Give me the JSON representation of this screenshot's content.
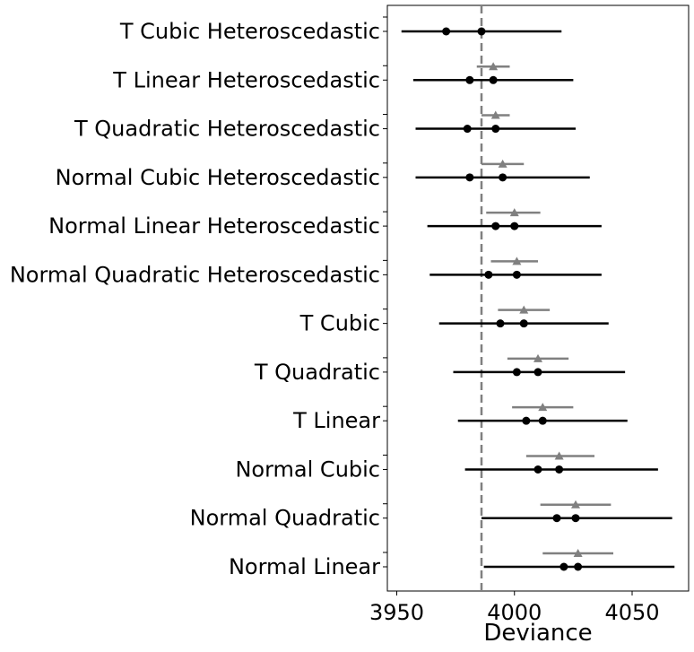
{
  "chart_data": {
    "type": "forest",
    "xlabel": "Deviance",
    "xlim": [
      3946,
      4074
    ],
    "xticks": [
      3950,
      4000,
      4050
    ],
    "reference_line": {
      "x": 3986,
      "style": "dashed",
      "color": "#808080"
    },
    "colors": {
      "primary": "#000000",
      "secondary": "#808080"
    },
    "categories": [
      "T Cubic Heteroscedastic",
      "T Linear Heteroscedastic",
      "T Quadratic Heteroscedastic",
      "Normal Cubic Heteroscedastic",
      "Normal Linear Heteroscedastic",
      "Normal Quadratic Heteroscedastic",
      "T Cubic",
      "T Quadratic",
      "T Linear",
      "Normal Cubic",
      "Normal Quadratic",
      "Normal Linear"
    ],
    "rows": [
      {
        "label": "T Cubic Heteroscedastic",
        "point": 3971,
        "ci": [
          3952,
          4020
        ],
        "mean": 3986,
        "secondary": null
      },
      {
        "label": "T Linear Heteroscedastic",
        "point": 3981,
        "ci": [
          3957,
          4025
        ],
        "mean": 3991,
        "secondary": {
          "point": 3991,
          "ci": [
            3984,
            3998
          ]
        }
      },
      {
        "label": "T Quadratic Heteroscedastic",
        "point": 3980,
        "ci": [
          3958,
          4026
        ],
        "mean": 3992,
        "secondary": {
          "point": 3992,
          "ci": [
            3986,
            3998
          ]
        }
      },
      {
        "label": "Normal Cubic Heteroscedastic",
        "point": 3981,
        "ci": [
          3958,
          4032
        ],
        "mean": 3995,
        "secondary": {
          "point": 3995,
          "ci": [
            3986,
            4004
          ]
        }
      },
      {
        "label": "Normal Linear Heteroscedastic",
        "point": 3992,
        "ci": [
          3963,
          4037
        ],
        "mean": 4000,
        "secondary": {
          "point": 4000,
          "ci": [
            3988,
            4011
          ]
        }
      },
      {
        "label": "Normal Quadratic Heteroscedastic",
        "point": 3989,
        "ci": [
          3964,
          4037
        ],
        "mean": 4001,
        "secondary": {
          "point": 4001,
          "ci": [
            3990,
            4010
          ]
        }
      },
      {
        "label": "T Cubic",
        "point": 3994,
        "ci": [
          3968,
          4040
        ],
        "mean": 4004,
        "secondary": {
          "point": 4004,
          "ci": [
            3993,
            4015
          ]
        }
      },
      {
        "label": "T Quadratic",
        "point": 4001,
        "ci": [
          3974,
          4047
        ],
        "mean": 4010,
        "secondary": {
          "point": 4010,
          "ci": [
            3997,
            4023
          ]
        }
      },
      {
        "label": "T Linear",
        "point": 4005,
        "ci": [
          3976,
          4048
        ],
        "mean": 4012,
        "secondary": {
          "point": 4012,
          "ci": [
            3999,
            4025
          ]
        }
      },
      {
        "label": "Normal Cubic",
        "point": 4010,
        "ci": [
          3979,
          4061
        ],
        "mean": 4019,
        "secondary": {
          "point": 4019,
          "ci": [
            4005,
            4034
          ]
        }
      },
      {
        "label": "Normal Quadratic",
        "point": 4018,
        "ci": [
          3986,
          4067
        ],
        "mean": 4026,
        "secondary": {
          "point": 4026,
          "ci": [
            4011,
            4041
          ]
        }
      },
      {
        "label": "Normal Linear",
        "point": 4021,
        "ci": [
          3987,
          4068
        ],
        "mean": 4027,
        "secondary": {
          "point": 4027,
          "ci": [
            4012,
            4042
          ]
        }
      }
    ]
  }
}
